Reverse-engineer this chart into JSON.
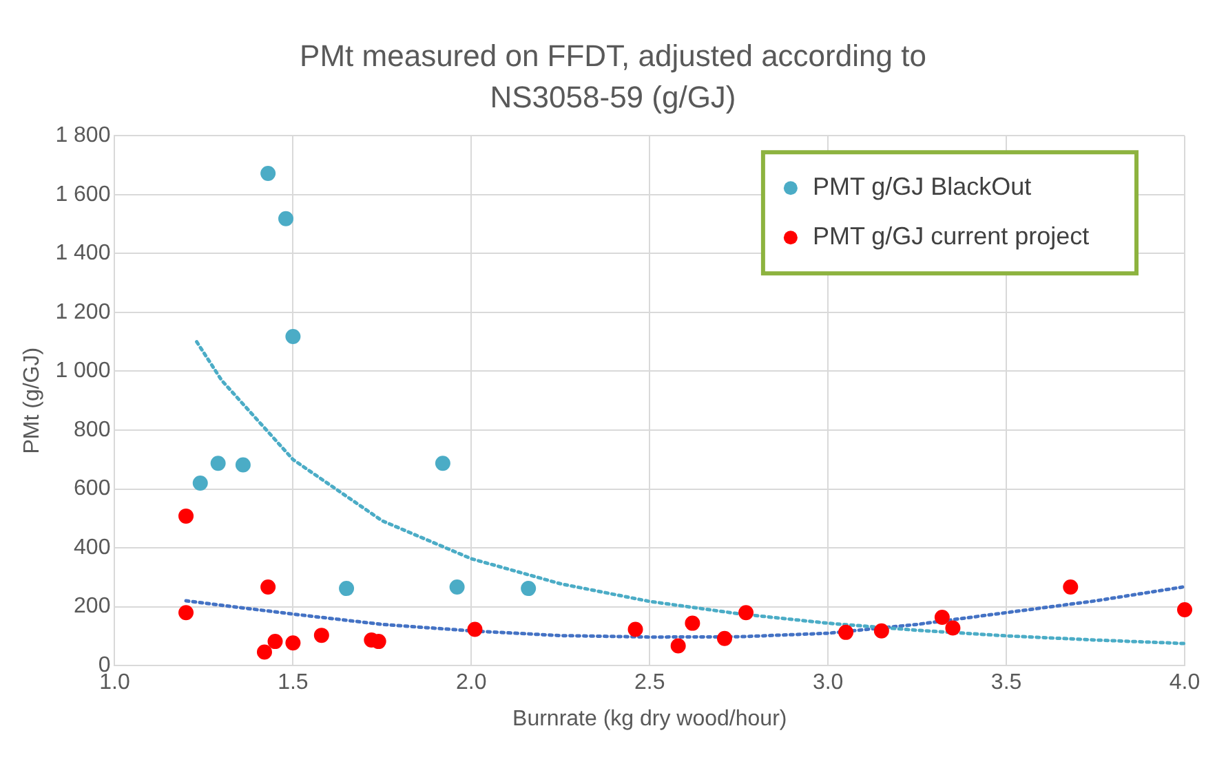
{
  "chart_data": {
    "type": "scatter",
    "title": "PMt measured on FFDT, adjusted according to NS3058-59 (g/GJ)",
    "xlabel": "Burnrate (kg dry wood/hour)",
    "ylabel": "PMt (g/GJ)",
    "xlim": [
      1,
      4
    ],
    "xticks": [
      {
        "value": 1,
        "label": "1.0"
      },
      {
        "value": 1.5,
        "label": "1.5"
      },
      {
        "value": 2,
        "label": "2.0"
      },
      {
        "value": 2.5,
        "label": "2.5"
      },
      {
        "value": 3,
        "label": "3.0"
      },
      {
        "value": 3.5,
        "label": "3.5"
      },
      {
        "value": 4,
        "label": "4.0"
      }
    ],
    "ylim": [
      0,
      1800
    ],
    "yticks": [
      0,
      200,
      400,
      600,
      800,
      {
        "value": 1000,
        "label": "1 000"
      },
      {
        "value": 1200,
        "label": "1 200"
      },
      {
        "value": 1400,
        "label": "1 400"
      },
      {
        "value": 1600,
        "label": "1 600"
      },
      {
        "value": 1800,
        "label": "1 800"
      }
    ],
    "grid": true,
    "legend": "top right",
    "marker": "circle",
    "series": [
      {
        "name": "PMT g/GJ BlackOut",
        "type": "scatter",
        "color": "#4bacc6",
        "x": [
          1.24,
          1.29,
          1.36,
          1.43,
          1.48,
          1.5,
          1.65,
          1.92,
          1.96,
          2.16
        ],
        "values": [
          620,
          687,
          682,
          1672,
          1518,
          1118,
          262,
          687,
          267,
          262
        ]
      },
      {
        "name": "PMT g/GJ current project",
        "type": "scatter",
        "color": "#ff0000",
        "x": [
          1.2,
          1.2,
          1.43,
          1.42,
          1.45,
          1.5,
          1.58,
          1.72,
          1.74,
          2.01,
          2.46,
          2.58,
          2.62,
          2.71,
          2.77,
          3.05,
          3.15,
          3.32,
          3.35,
          3.68,
          4.0
        ],
        "values": [
          508,
          180,
          267,
          46,
          82,
          77,
          103,
          87,
          82,
          123,
          123,
          67,
          144,
          92,
          180,
          113,
          118,
          164,
          128,
          267,
          190
        ]
      },
      {
        "type": "line",
        "color": "#4bacc6",
        "line_style": "dotted",
        "marker": "none",
        "x": [
          1.23,
          1.3,
          1.5,
          1.75,
          2,
          2.25,
          2.5,
          2.75,
          3,
          3.25,
          3.5,
          3.75,
          4
        ],
        "values": [
          1100,
          969,
          700,
          492,
          363,
          278,
          218,
          176,
          144,
          120,
          101,
          87,
          75
        ]
      },
      {
        "type": "line",
        "color": "#4472c4",
        "line_style": "dotted",
        "marker": "none",
        "x": [
          1.2,
          1.5,
          1.75,
          2,
          2.25,
          2.5,
          2.75,
          3,
          3.25,
          3.5,
          3.75,
          4
        ],
        "values": [
          220,
          175,
          140,
          118,
          102,
          97,
          98,
          110,
          140,
          180,
          220,
          268
        ]
      }
    ]
  }
}
